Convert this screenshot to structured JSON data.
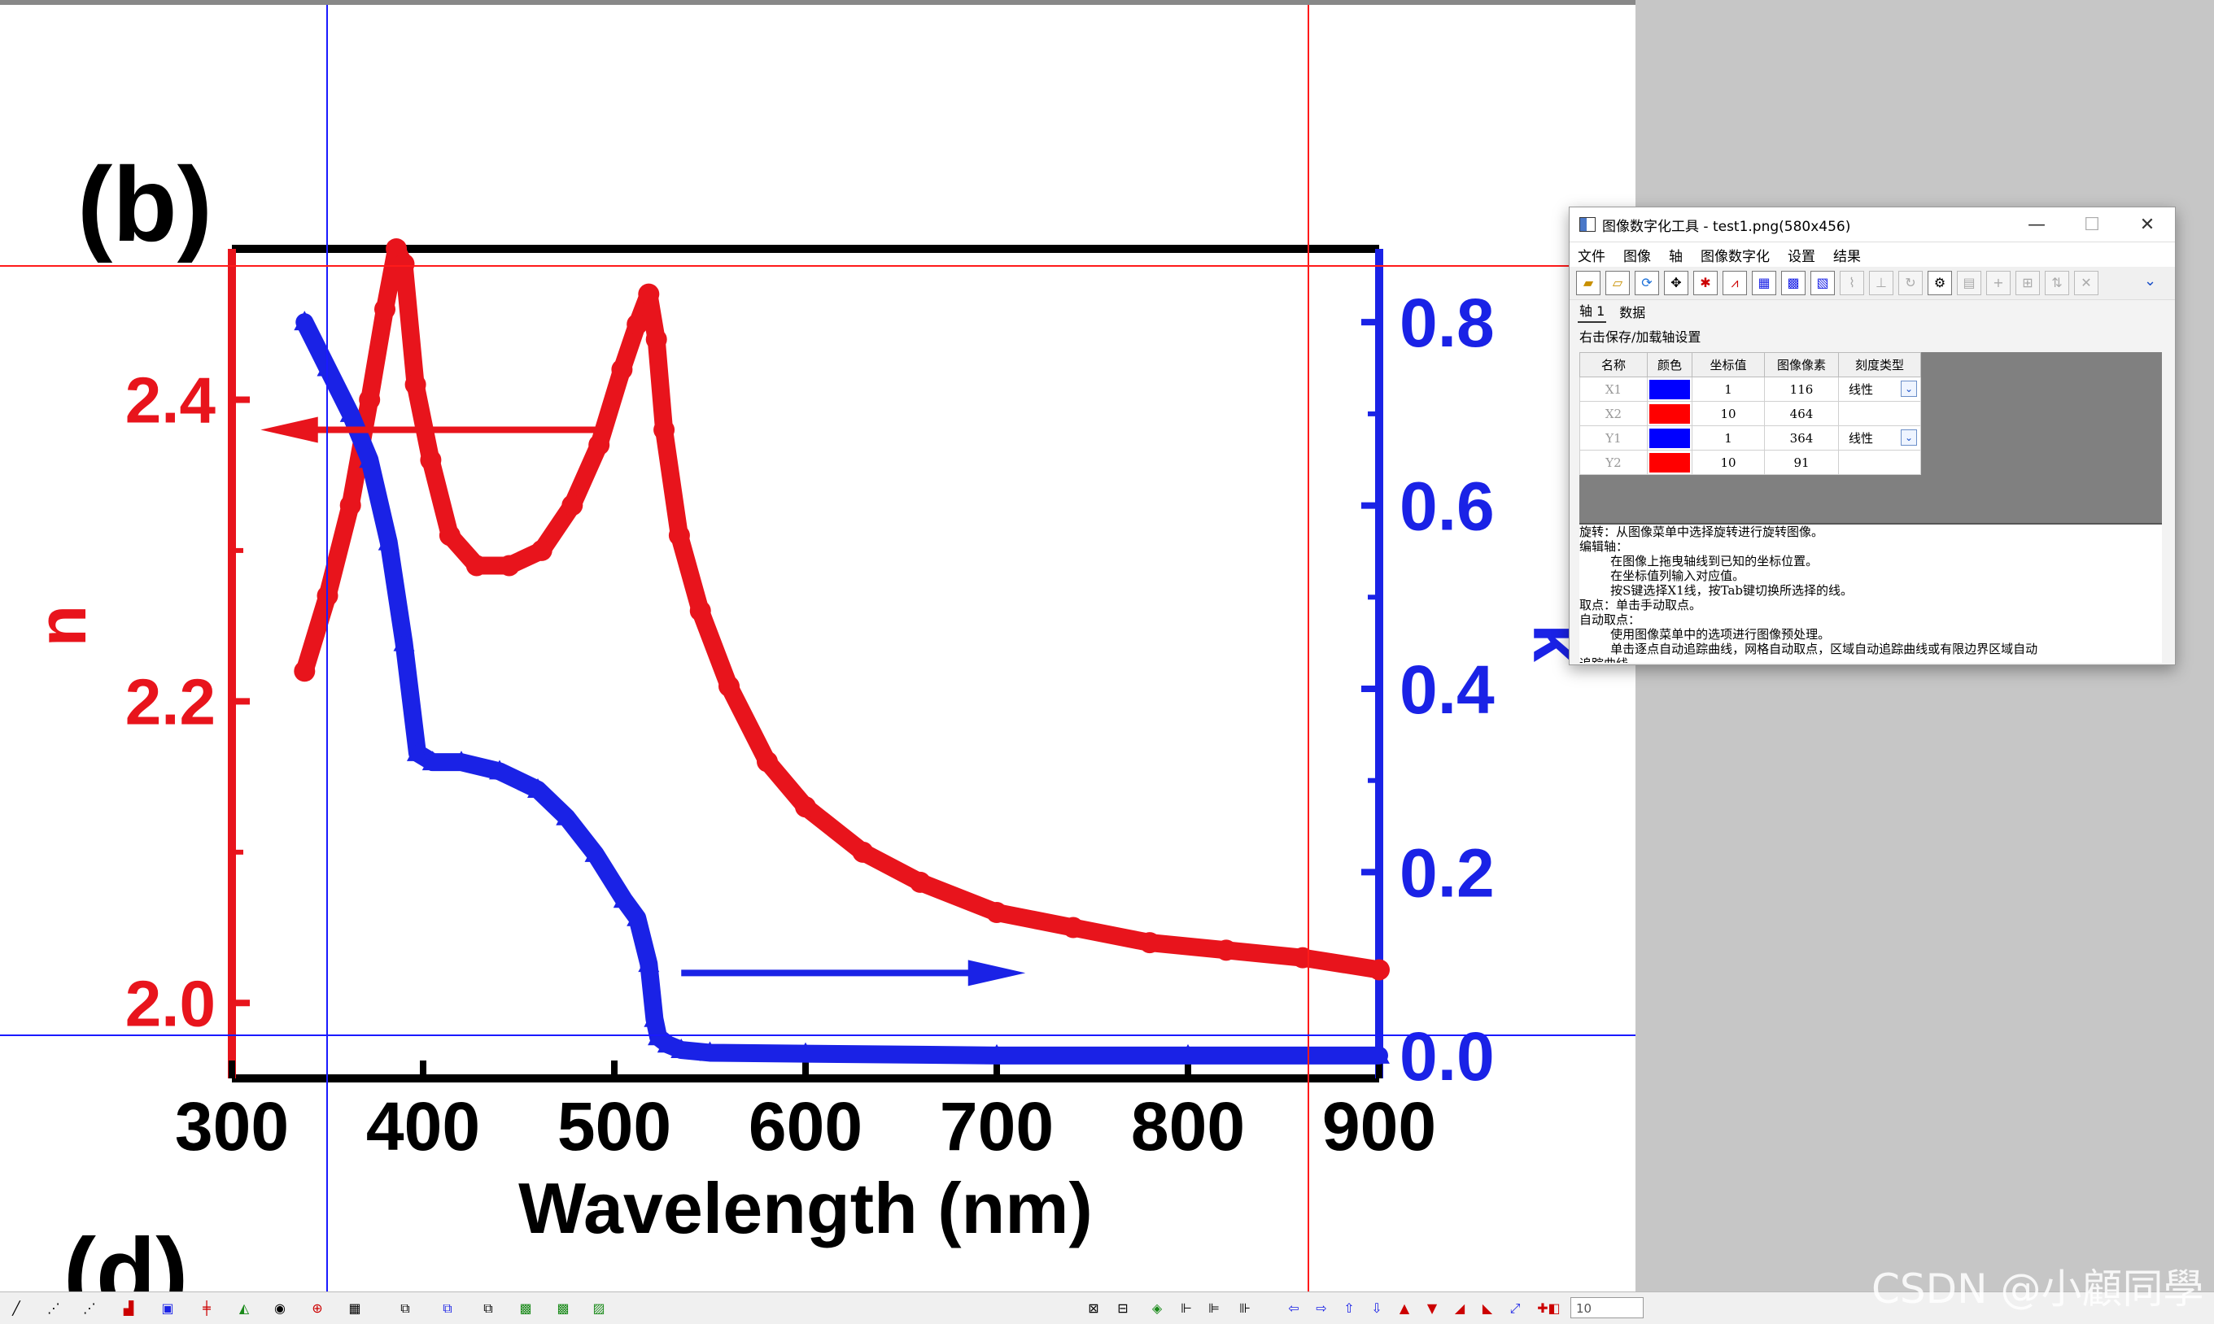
{
  "chart_data": {
    "type": "line",
    "panel_label": "(b)",
    "next_panel_label": "(d)",
    "xlabel": "Wavelength (nm)",
    "xlim": [
      300,
      900
    ],
    "x_ticks": [
      300,
      400,
      500,
      600,
      700,
      800,
      900
    ],
    "y_left": {
      "label": "n",
      "lim": [
        1.95,
        2.5
      ],
      "ticks": [
        2.0,
        2.2,
        2.4
      ],
      "tick_labels": [
        "2.0",
        "2.2",
        "2.4"
      ],
      "color": "#e8141c"
    },
    "y_right": {
      "label": "k",
      "lim": [
        -0.025,
        0.88
      ],
      "ticks": [
        0.0,
        0.2,
        0.4,
        0.6,
        0.8
      ],
      "tick_labels": [
        "0.0",
        "0.2",
        "0.4",
        "0.6",
        "0.8"
      ],
      "color": "#1a22e6"
    },
    "series": [
      {
        "name": "n",
        "axis": "left",
        "color": "#e8141c",
        "marker": "circle",
        "x": [
          338,
          350,
          362,
          372,
          380,
          386,
          390,
          396,
          404,
          414,
          428,
          445,
          462,
          478,
          492,
          504,
          512,
          518,
          522,
          526,
          534,
          545,
          560,
          580,
          600,
          630,
          660,
          700,
          740,
          780,
          820,
          860,
          900
        ],
        "y": [
          2.22,
          2.27,
          2.33,
          2.4,
          2.46,
          2.5,
          2.49,
          2.41,
          2.36,
          2.31,
          2.29,
          2.29,
          2.3,
          2.33,
          2.37,
          2.42,
          2.45,
          2.47,
          2.44,
          2.38,
          2.31,
          2.26,
          2.21,
          2.16,
          2.13,
          2.1,
          2.08,
          2.06,
          2.05,
          2.04,
          2.035,
          2.03,
          2.022
        ]
      },
      {
        "name": "k",
        "axis": "right",
        "color": "#1a22e6",
        "marker": "triangle",
        "x": [
          338,
          350,
          362,
          372,
          382,
          390,
          397,
          405,
          420,
          440,
          460,
          475,
          490,
          505,
          512,
          518,
          521,
          523,
          528,
          535,
          550,
          600,
          700,
          800,
          900
        ],
        "y": [
          0.8,
          0.75,
          0.7,
          0.65,
          0.56,
          0.45,
          0.33,
          0.32,
          0.32,
          0.31,
          0.29,
          0.26,
          0.22,
          0.17,
          0.15,
          0.1,
          0.04,
          0.02,
          0.012,
          0.006,
          0.003,
          0.002,
          0.0,
          0.0,
          0.0
        ]
      }
    ],
    "annotations": [
      {
        "text": "left arrow indicates n uses left axis",
        "arrow": "left",
        "color": "#e8141c"
      },
      {
        "text": "right arrow indicates k uses right axis",
        "arrow": "right",
        "color": "#1a22e6"
      }
    ]
  },
  "dialog": {
    "title": "图像数字化工具 - test1.png(580x456)",
    "window_buttons": {
      "minimize": "—",
      "maximize": "☐",
      "close": "✕"
    },
    "menu": [
      "文件",
      "图像",
      "轴",
      "图像数字化",
      "设置",
      "结果"
    ],
    "tabs": [
      "轴 1",
      "数据"
    ],
    "hint": "右击保存/加载轴设置",
    "table": {
      "headers": [
        "名称",
        "颜色",
        "坐标值",
        "图像像素",
        "刻度类型"
      ],
      "rows": [
        {
          "name": "X1",
          "color": "#0000ff",
          "value": "1",
          "pixel": "116",
          "scale": "线性"
        },
        {
          "name": "X2",
          "color": "#ff0000",
          "value": "10",
          "pixel": "464",
          "scale": ""
        },
        {
          "name": "Y1",
          "color": "#0000ff",
          "value": "1",
          "pixel": "364",
          "scale": "线性"
        },
        {
          "name": "Y2",
          "color": "#ff0000",
          "value": "10",
          "pixel": "91",
          "scale": ""
        }
      ]
    },
    "help_lines": [
      "旋转：从图像菜单中选择旋转进行旋转图像。",
      "编辑轴：",
      "        在图像上拖曳轴线到已知的坐标位置。",
      "        在坐标值列输入对应值。",
      "        按S键选择X1线，按Tab键切换所选择的线。",
      "取点：单击手动取点。",
      "自动取点：",
      "        使用图像菜单中的选项进行图像预处理。",
      "        单击逐点自动追踪曲线，网格自动取点，区域自动追踪曲线或有限边界区域自动",
      "追踪曲线"
    ]
  },
  "bottom_toolbar": {
    "zoom_value": "10"
  },
  "watermark": "CSDN @小顧同學"
}
